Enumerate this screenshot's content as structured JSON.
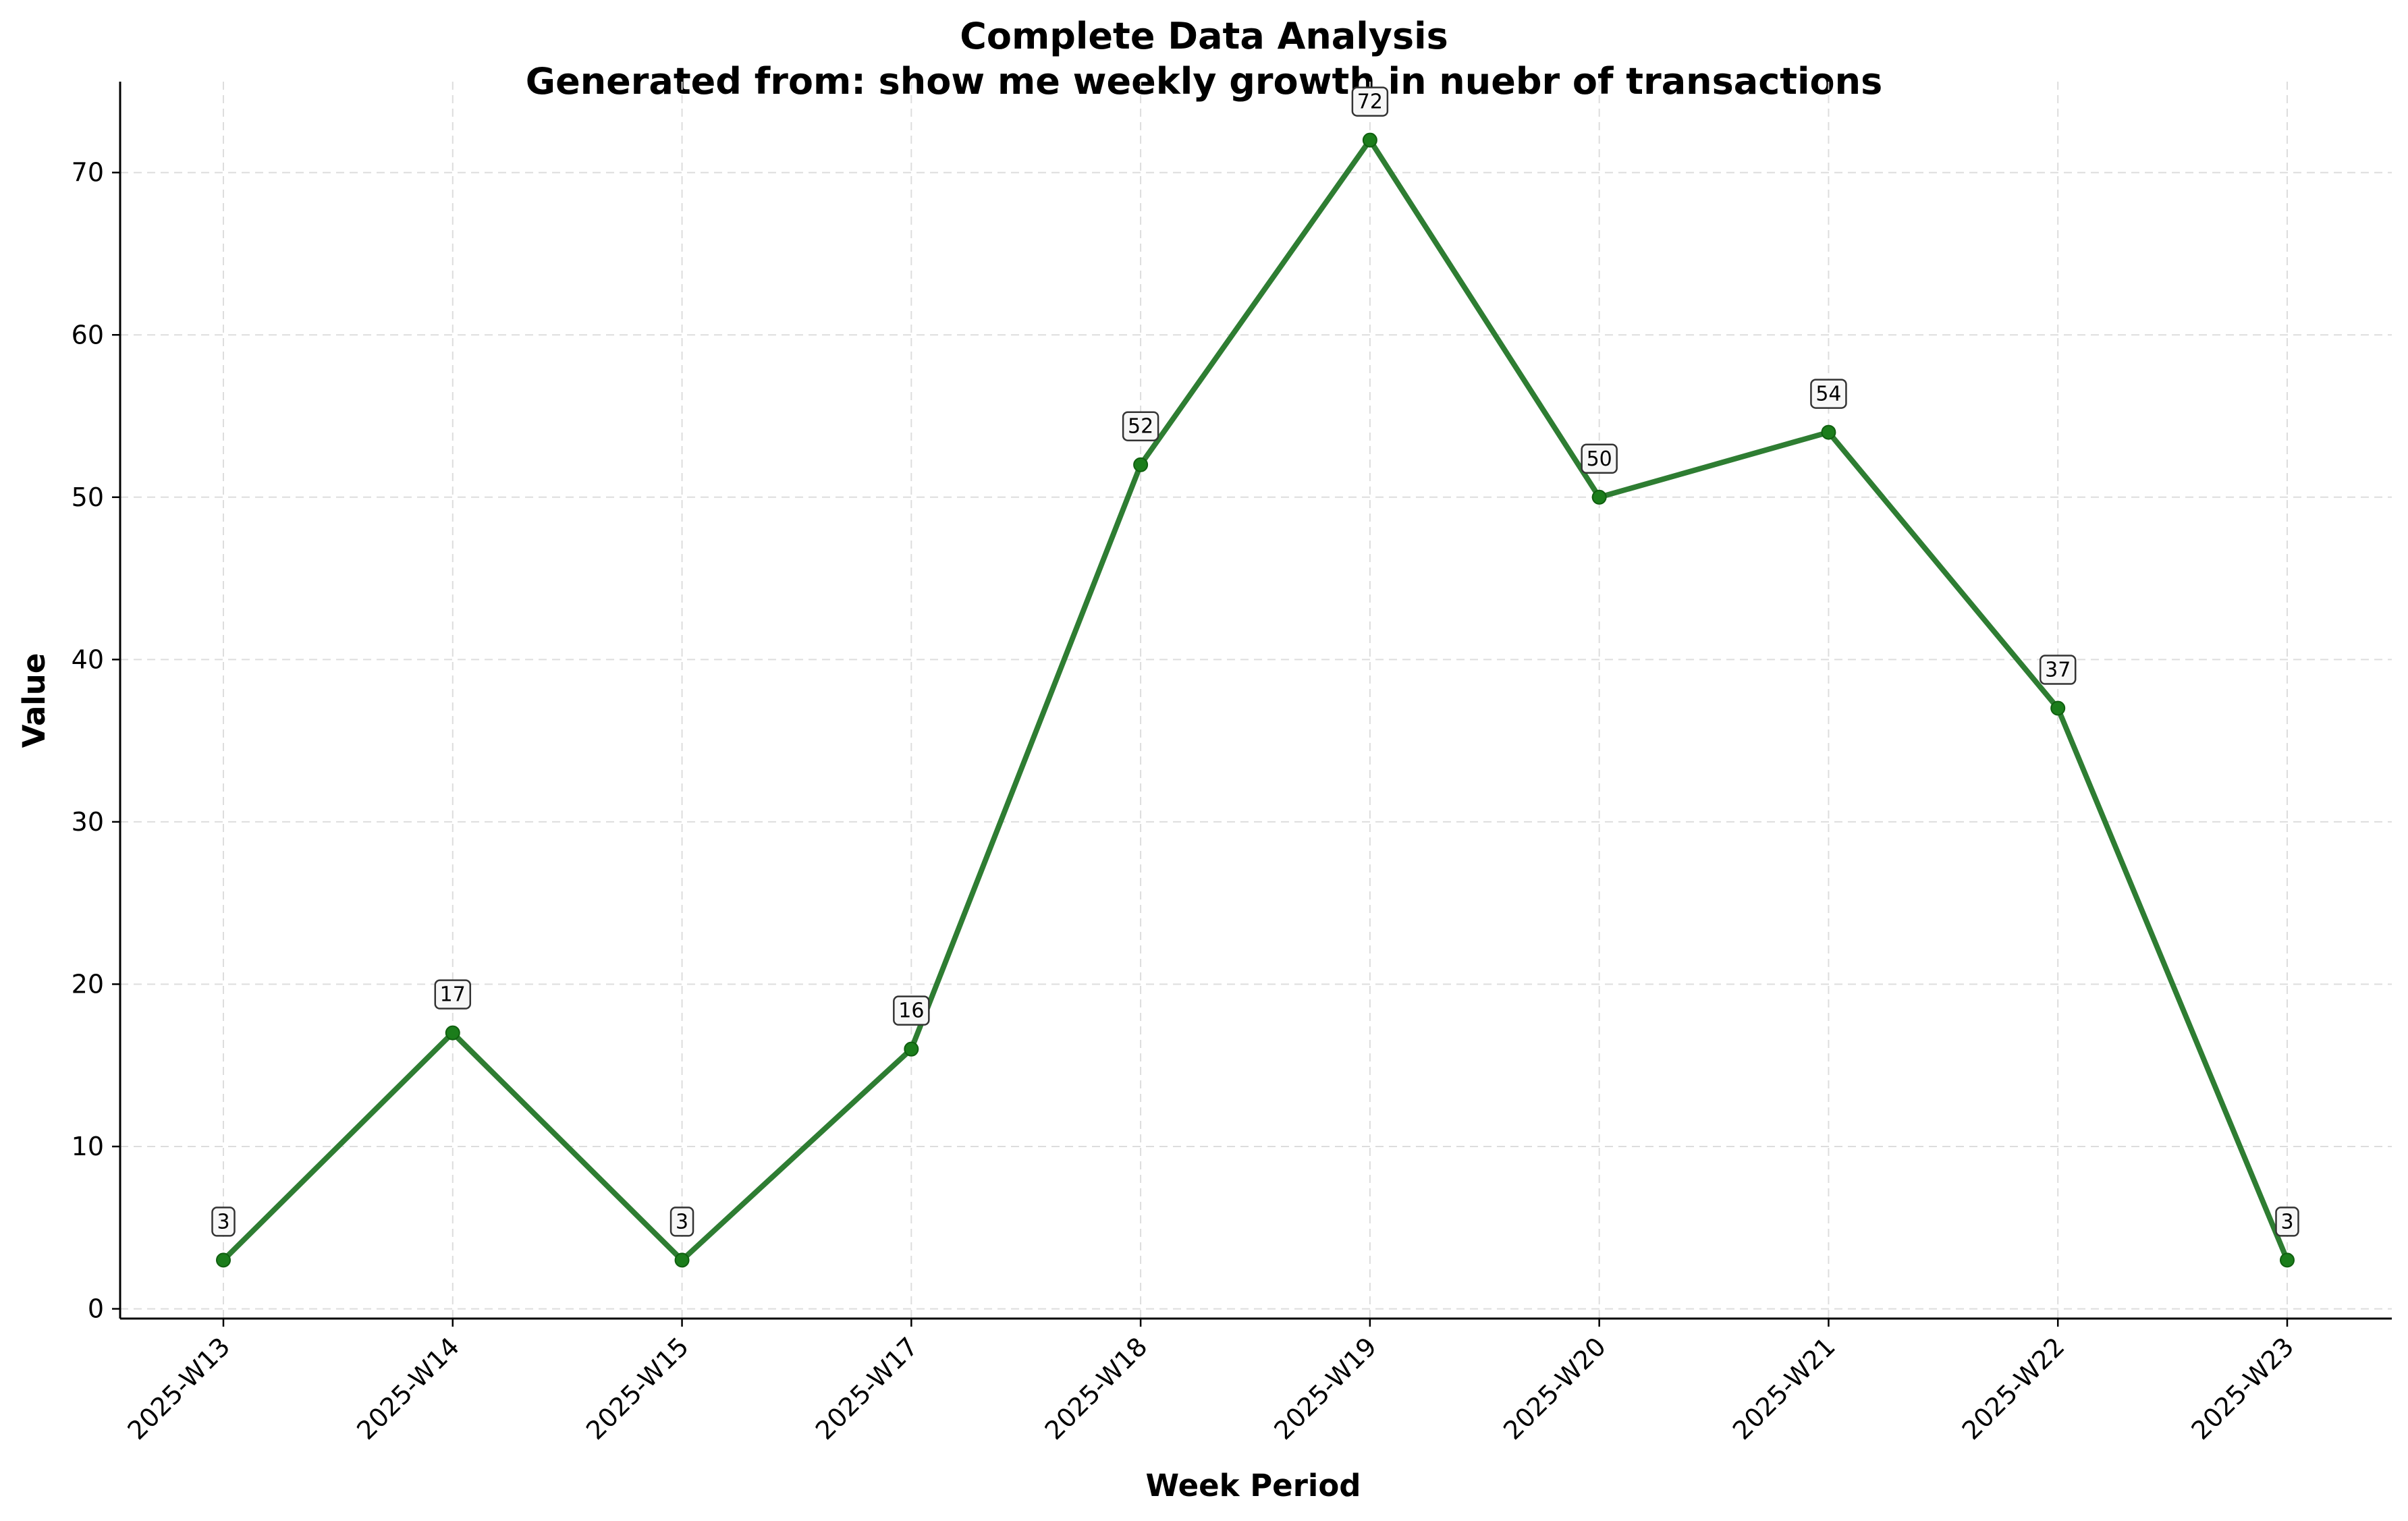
{
  "chart_data": {
    "type": "line",
    "title": "Complete Data Analysis",
    "subtitle": "Generated from: show me weekly growth in nuebr of transactions",
    "xlabel": "Week Period",
    "ylabel": "Value",
    "categories": [
      "2025-W13",
      "2025-W14",
      "2025-W15",
      "2025-W17",
      "2025-W18",
      "2025-W19",
      "2025-W20",
      "2025-W21",
      "2025-W22",
      "2025-W23"
    ],
    "values": [
      3,
      17,
      3,
      16,
      52,
      72,
      50,
      54,
      37,
      3
    ],
    "ylim": [
      -0.6,
      75.6
    ],
    "yticks": [
      0,
      10,
      20,
      30,
      40,
      50,
      60,
      70
    ],
    "grid": true,
    "legend": "none",
    "colors": {
      "line": "#2e7d32",
      "marker": "#1b7d1b",
      "grid": "#dddddd",
      "axis": "#000000",
      "label_box_fill": "#f7f7f7",
      "label_box_stroke": "#333333"
    }
  }
}
